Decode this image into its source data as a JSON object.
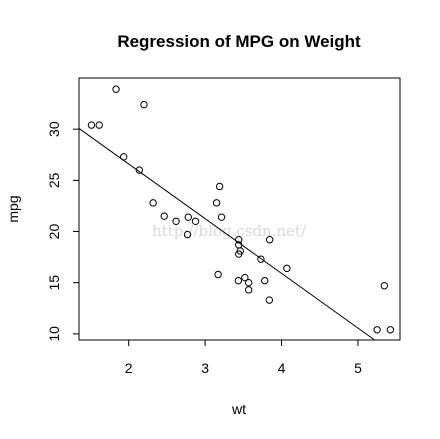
{
  "chart_data": {
    "type": "scatter",
    "title": "Regression of MPG on Weight",
    "xlabel": "wt",
    "ylabel": "mpg",
    "xlim": [
      1.35,
      5.55
    ],
    "ylim": [
      9.4,
      35.0
    ],
    "xticks": [
      2,
      3,
      4,
      5
    ],
    "yticks": [
      10,
      15,
      20,
      25,
      30
    ],
    "grid": false,
    "watermark": "http://blog.csdn.net/",
    "points": [
      [
        2.62,
        21.0
      ],
      [
        2.875,
        21.0
      ],
      [
        2.32,
        22.8
      ],
      [
        3.215,
        21.4
      ],
      [
        3.44,
        18.7
      ],
      [
        3.46,
        18.1
      ],
      [
        3.57,
        14.3
      ],
      [
        3.19,
        24.4
      ],
      [
        3.15,
        22.8
      ],
      [
        3.44,
        19.2
      ],
      [
        3.44,
        17.8
      ],
      [
        4.07,
        16.4
      ],
      [
        3.73,
        17.3
      ],
      [
        3.78,
        15.2
      ],
      [
        5.25,
        10.4
      ],
      [
        5.424,
        10.4
      ],
      [
        5.345,
        14.7
      ],
      [
        2.2,
        32.4
      ],
      [
        1.615,
        30.4
      ],
      [
        1.835,
        33.9
      ],
      [
        2.465,
        21.5
      ],
      [
        3.52,
        15.5
      ],
      [
        3.435,
        15.2
      ],
      [
        3.84,
        13.3
      ],
      [
        3.845,
        19.2
      ],
      [
        1.935,
        27.3
      ],
      [
        2.14,
        26.0
      ],
      [
        1.513,
        30.4
      ],
      [
        3.17,
        15.8
      ],
      [
        2.77,
        19.7
      ],
      [
        3.57,
        15.0
      ],
      [
        2.78,
        21.4
      ]
    ],
    "regression": {
      "intercept": 37.285,
      "slope": -5.344
    }
  }
}
